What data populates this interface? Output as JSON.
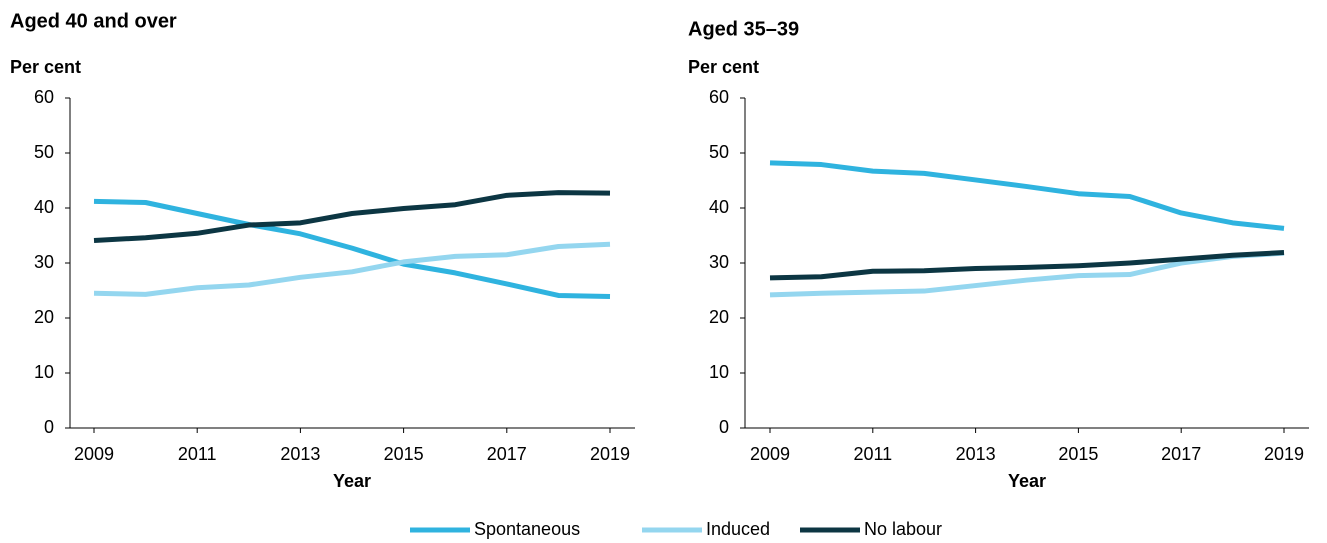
{
  "chart_data": [
    {
      "type": "line",
      "title": "Aged 40 and over",
      "y_label": "Per cent",
      "x_label": "Year",
      "x": [
        2009,
        2010,
        2011,
        2012,
        2013,
        2014,
        2015,
        2016,
        2017,
        2018,
        2019
      ],
      "xlim": [
        2009,
        2019
      ],
      "xticks": [
        2009,
        2011,
        2013,
        2015,
        2017,
        2019
      ],
      "ylim": [
        0,
        60
      ],
      "yticks": [
        0,
        10,
        20,
        30,
        40,
        50,
        60
      ],
      "series": [
        {
          "name": "Spontaneous",
          "color": "#2fb3df",
          "values": [
            41.2,
            41,
            39,
            37,
            35.3,
            32.7,
            29.8,
            28.2,
            26.2,
            24.1,
            23.9
          ]
        },
        {
          "name": "Induced",
          "color": "#94d6ef",
          "values": [
            24.5,
            24.3,
            25.5,
            26,
            27.4,
            28.4,
            30.2,
            31.2,
            31.5,
            33,
            33.4
          ]
        },
        {
          "name": "No labour",
          "color": "#0c3643",
          "values": [
            34.1,
            34.6,
            35.4,
            36.9,
            37.3,
            39,
            39.9,
            40.6,
            42.3,
            42.8,
            42.7
          ]
        }
      ]
    },
    {
      "type": "line",
      "title": "Aged 35–39",
      "y_label": "Per cent",
      "x_label": "Year",
      "x": [
        2009,
        2010,
        2011,
        2012,
        2013,
        2014,
        2015,
        2016,
        2017,
        2018,
        2019
      ],
      "xlim": [
        2009,
        2019
      ],
      "xticks": [
        2009,
        2011,
        2013,
        2015,
        2017,
        2019
      ],
      "ylim": [
        0,
        60
      ],
      "yticks": [
        0,
        10,
        20,
        30,
        40,
        50,
        60
      ],
      "series": [
        {
          "color": "#2fb3df",
          "values": [
            48.2,
            47.9,
            46.7,
            46.3,
            45.1,
            43.9,
            42.6,
            42.1,
            39.1,
            37.3,
            36.3
          ]
        },
        {
          "color": "#94d6ef",
          "values": [
            24.2,
            24.5,
            24.7,
            24.9,
            25.9,
            26.9,
            27.7,
            27.9,
            30,
            31.2,
            31.8
          ]
        },
        {
          "color": "#0c3643",
          "values": [
            27.3,
            27.5,
            28.5,
            28.6,
            29,
            29.2,
            29.5,
            30,
            30.7,
            31.4,
            31.9
          ]
        }
      ]
    }
  ]
}
